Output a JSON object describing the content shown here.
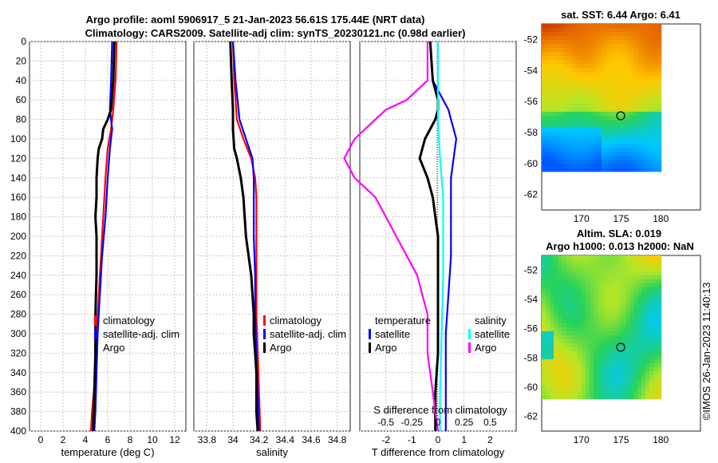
{
  "title_line1": "Argo profile: aoml 5906917_5 21-Jan-2023 56.61S 175.44E (NRT data)",
  "title_line2": "Climatology: CARS2009. Satellite-adj clim: synTS_20230121.nc (0.98d earlier)",
  "watermark": "©IMOS 26-Jan-2023 11:40:13",
  "colors": {
    "climatology": "#ff0000",
    "satellite": "#0000ff",
    "argo": "#000000",
    "sal_sat": "#00ffff",
    "sal_argo": "#ff00ff"
  },
  "chart_data": [
    {
      "id": "temperature",
      "type": "line",
      "xlabel": "temperature (deg C)",
      "xlim": [
        -1,
        13
      ],
      "xticks": [
        0,
        2,
        4,
        6,
        8,
        10,
        12
      ],
      "ylim": [
        0,
        400
      ],
      "yticks": [
        0,
        20,
        40,
        60,
        80,
        100,
        120,
        140,
        160,
        180,
        200,
        220,
        240,
        260,
        280,
        300,
        320,
        340,
        360,
        380,
        400
      ],
      "legend": [
        "climatology",
        "satellite-adj. clim",
        "Argo"
      ],
      "series": [
        {
          "name": "climatology",
          "color": "red",
          "depth": [
            0,
            40,
            70,
            90,
            110,
            140,
            180,
            220,
            260,
            300,
            340,
            380,
            400
          ],
          "values": [
            6.8,
            6.7,
            6.5,
            6.3,
            6.0,
            5.8,
            5.6,
            5.4,
            5.2,
            5.0,
            4.9,
            4.6,
            4.5
          ]
        },
        {
          "name": "satellite-adj. clim",
          "color": "blue",
          "depth": [
            0,
            40,
            70,
            80,
            90,
            110,
            140,
            180,
            220,
            260,
            300,
            340,
            380,
            400
          ],
          "values": [
            6.4,
            6.3,
            6.2,
            6.3,
            6.4,
            6.2,
            6.0,
            5.8,
            5.5,
            5.3,
            5.1,
            5.0,
            4.9,
            4.8
          ]
        },
        {
          "name": "Argo",
          "color": "black",
          "depth": [
            0,
            40,
            70,
            80,
            90,
            100,
            110,
            120,
            140,
            160,
            180,
            200,
            240,
            280,
            320,
            360,
            400
          ],
          "values": [
            6.6,
            6.5,
            6.3,
            6.0,
            5.6,
            5.5,
            5.2,
            5.1,
            5.0,
            5.0,
            4.9,
            5.0,
            5.0,
            4.9,
            4.9,
            4.8,
            4.7
          ]
        }
      ]
    },
    {
      "id": "salinity",
      "type": "line",
      "xlabel": "salinity",
      "xlim": [
        33.7,
        34.9
      ],
      "xticks": [
        33.8,
        34,
        34.2,
        34.4,
        34.6,
        34.8
      ],
      "ylim": [
        0,
        400
      ],
      "legend": [
        "climatology",
        "satellite-adj. clim",
        "Argo"
      ],
      "series": [
        {
          "name": "climatology",
          "color": "red",
          "depth": [
            0,
            40,
            80,
            100,
            120,
            140,
            160,
            200,
            240,
            280,
            320,
            360,
            400
          ],
          "values": [
            34.0,
            34.01,
            34.03,
            34.08,
            34.14,
            34.17,
            34.18,
            34.18,
            34.18,
            34.18,
            34.19,
            34.2,
            34.21
          ]
        },
        {
          "name": "satellite-adj. clim",
          "color": "blue",
          "depth": [
            0,
            40,
            80,
            100,
            120,
            140,
            160,
            200,
            240,
            280,
            320,
            360,
            400
          ],
          "values": [
            34.0,
            34.02,
            34.05,
            34.1,
            34.15,
            34.16,
            34.16,
            34.16,
            34.17,
            34.17,
            34.18,
            34.19,
            34.2
          ]
        },
        {
          "name": "Argo",
          "color": "black",
          "depth": [
            0,
            40,
            70,
            90,
            110,
            120,
            140,
            160,
            180,
            200,
            220,
            240,
            260,
            280,
            300,
            320,
            340,
            360,
            380,
            400
          ],
          "values": [
            33.98,
            33.99,
            34.0,
            34.0,
            34.01,
            34.03,
            34.06,
            34.08,
            34.09,
            34.1,
            34.12,
            34.14,
            34.15,
            34.16,
            34.16,
            34.17,
            34.18,
            34.18,
            34.18,
            34.19
          ]
        }
      ]
    },
    {
      "id": "difference",
      "type": "line",
      "xlabel": "T difference from climatology",
      "top_xlabel": "S difference from climatology",
      "xlim": [
        -3,
        3
      ],
      "xticks": [
        -2,
        -1,
        0,
        1,
        2
      ],
      "top_xticks": [
        "-0.5",
        "-0.25",
        "0",
        "0.25",
        "0.5"
      ],
      "ylim": [
        0,
        400
      ],
      "legend_t": [
        "temperature",
        "satellite",
        "Argo"
      ],
      "legend_s": [
        "salinity",
        "satellite",
        "Argo"
      ],
      "series": [
        {
          "name": "temperature satellite",
          "color": "blue",
          "depth": [
            0,
            40,
            60,
            70,
            80,
            90,
            100,
            120,
            140,
            180,
            220,
            260,
            300,
            340,
            380,
            400
          ],
          "values": [
            -0.3,
            -0.2,
            0.2,
            0.4,
            0.5,
            0.6,
            0.7,
            0.6,
            0.5,
            0.5,
            0.5,
            0.4,
            0.3,
            0.3,
            0.3,
            0.3
          ]
        },
        {
          "name": "temperature Argo",
          "color": "black",
          "depth": [
            0,
            40,
            60,
            70,
            80,
            100,
            120,
            140,
            160,
            180,
            200,
            240,
            280,
            320,
            360,
            400
          ],
          "values": [
            -0.3,
            -0.2,
            0.0,
            0.0,
            -0.1,
            -0.5,
            -0.7,
            -0.4,
            -0.2,
            -0.1,
            0.0,
            0.0,
            0.0,
            0.0,
            -0.1,
            -0.1
          ]
        },
        {
          "name": "salinity satellite",
          "color": "cyan",
          "depth": [
            0,
            40,
            80,
            120,
            160,
            200,
            240,
            280,
            320,
            360,
            400
          ],
          "values": [
            0.0,
            0.0,
            0.0,
            0.02,
            0.05,
            0.05,
            0.05,
            0.04,
            0.03,
            0.02,
            0.02
          ]
        },
        {
          "name": "salinity Argo",
          "color": "magenta",
          "depth": [
            0,
            40,
            60,
            70,
            80,
            100,
            120,
            140,
            160,
            180,
            200,
            240,
            280,
            300,
            320,
            360,
            400
          ],
          "values": [
            -0.1,
            -0.1,
            -0.3,
            -0.5,
            -0.6,
            -0.8,
            -0.9,
            -0.8,
            -0.6,
            -0.5,
            -0.4,
            -0.2,
            -0.1,
            -0.1,
            -0.1,
            -0.05,
            0.0
          ]
        }
      ]
    },
    {
      "id": "sst_map",
      "type": "heatmap",
      "title": "sat. SST: 6.44 Argo: 6.41",
      "xlim": [
        165,
        185
      ],
      "ylim": [
        -63,
        -51
      ],
      "xticks": [
        170,
        175,
        180
      ],
      "yticks": [
        -52,
        -54,
        -56,
        -58,
        -60,
        -62
      ],
      "marker": {
        "lon": 175.44,
        "lat": -56.61
      }
    },
    {
      "id": "sla_map",
      "type": "heatmap",
      "title": "Altim. SLA: 0.019",
      "subtitle": "Argo h1000: 0.013 h2000: NaN",
      "xlim": [
        165,
        185
      ],
      "ylim": [
        -63,
        -51
      ],
      "xticks": [
        170,
        175,
        180
      ],
      "yticks": [
        -52,
        -54,
        -56,
        -58,
        -60,
        -62
      ],
      "marker": {
        "lon": 175.44,
        "lat": -56.61
      }
    }
  ]
}
